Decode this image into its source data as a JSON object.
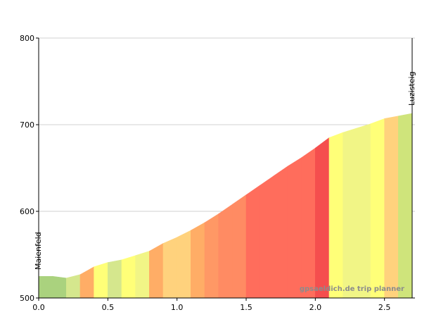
{
  "chart_data": {
    "type": "area",
    "title": "",
    "xlabel": "",
    "ylabel": "",
    "xlim": [
      0.0,
      2.7
    ],
    "ylim": [
      500,
      800
    ],
    "x_ticks": [
      {
        "value": 0.0,
        "label": "0.0"
      },
      {
        "value": 0.5,
        "label": "0.5"
      },
      {
        "value": 1.0,
        "label": "1.0"
      },
      {
        "value": 1.5,
        "label": "1.5"
      },
      {
        "value": 2.0,
        "label": "2.0"
      },
      {
        "value": 2.5,
        "label": "2.5"
      }
    ],
    "y_ticks": [
      {
        "value": 500,
        "label": "500"
      },
      {
        "value": 600,
        "label": "600"
      },
      {
        "value": 700,
        "label": "700"
      },
      {
        "value": 800,
        "label": "800"
      }
    ],
    "grid": "horizontal",
    "x": [
      0.0,
      0.1,
      0.2,
      0.3,
      0.4,
      0.5,
      0.6,
      0.7,
      0.8,
      0.9,
      1.0,
      1.1,
      1.2,
      1.3,
      1.4,
      1.5,
      1.6,
      1.7,
      1.8,
      1.9,
      2.0,
      2.1,
      2.2,
      2.3,
      2.4,
      2.5,
      2.6,
      2.7
    ],
    "elevation": [
      525,
      525,
      523,
      527,
      536,
      541,
      544,
      549,
      554,
      563,
      570,
      578,
      587,
      597,
      608,
      619,
      630,
      641,
      652,
      662,
      673,
      685,
      691,
      696,
      701,
      707,
      710,
      713
    ],
    "segment_colors": [
      "#aad27e",
      "#aad27e",
      "#d5e78d",
      "#ffad66",
      "#ffff78",
      "#d5e78d",
      "#ffff78",
      "#f1f586",
      "#ffad66",
      "#ffd27d",
      "#ffd27d",
      "#ffad66",
      "#ff9865",
      "#ff8b63",
      "#ff8b63",
      "#ff6d5c",
      "#ff6d5c",
      "#ff6d5c",
      "#ff6d5c",
      "#ff6d5c",
      "#f54e4e",
      "#ffff78",
      "#f1f586",
      "#f1f586",
      "#ffff78",
      "#ffd27d",
      "#cfe47b"
    ],
    "annotations": [
      {
        "text": "Maienfeld",
        "x": 0.0
      },
      {
        "text": "Luzisteig",
        "x": 2.7
      }
    ],
    "watermark": "gpsaeldich.de trip planner"
  }
}
